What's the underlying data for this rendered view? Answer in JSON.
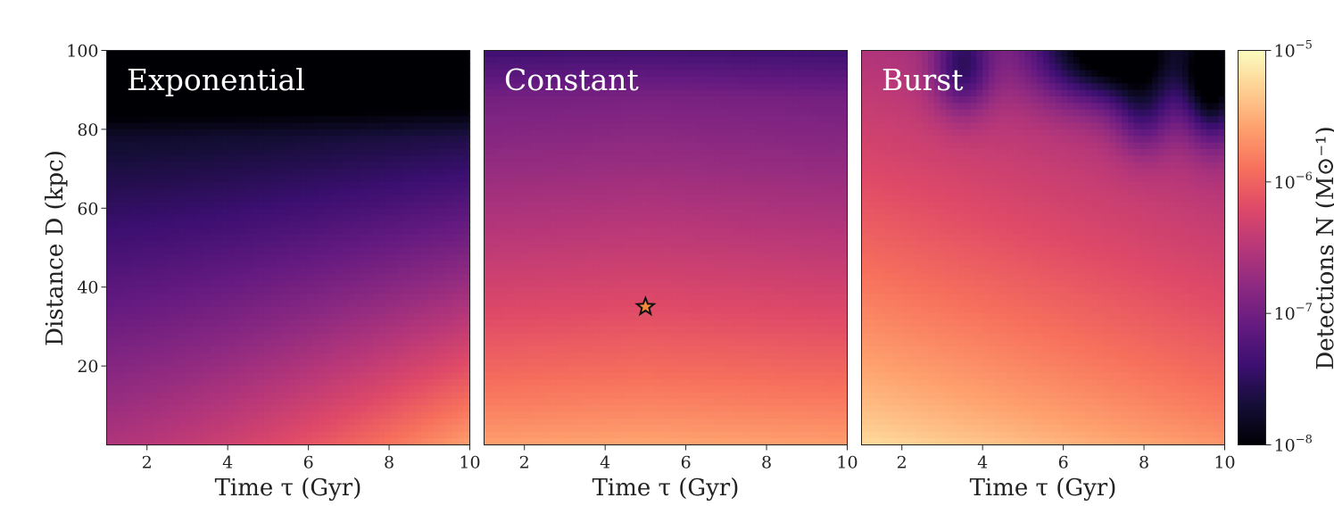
{
  "chart_data": {
    "type": "heatmap",
    "panels": [
      {
        "title": "Exponential",
        "xlabel": "Time τ (Gyr)",
        "ylabel": "Distance D (kpc)",
        "xlim": [
          1,
          10
        ],
        "ylim": [
          0,
          100
        ],
        "xticks": [
          2,
          4,
          6,
          8,
          10
        ],
        "yticks": [
          20,
          40,
          60,
          80,
          100
        ],
        "z_log10_grid": {
          "x": [
            1,
            10
          ],
          "y": [
            0,
            100
          ],
          "note_values": [
            [
              -6.6,
              -6.1
            ],
            [
              -7.8,
              -7.3
            ],
            [
              -8.0,
              -8.0
            ]
          ]
        }
      },
      {
        "title": "Constant",
        "xlabel": "Time τ (Gyr)",
        "xlim": [
          1,
          10
        ],
        "ylim": [
          0,
          100
        ],
        "xticks": [
          2,
          4,
          6,
          8,
          10
        ],
        "marker": {
          "symbol": "star",
          "x": 5,
          "y": 35
        }
      },
      {
        "title": "Burst",
        "xlabel": "Time τ (Gyr)",
        "xlim": [
          1,
          10
        ],
        "ylim": [
          0,
          100
        ],
        "xticks": [
          2,
          4,
          6,
          8,
          10
        ]
      }
    ],
    "colorbar": {
      "label": "Detections N (M⊙⁻¹)",
      "scale": "log",
      "range": [
        1e-08,
        1e-05
      ],
      "ticks": [
        {
          "mantissa": "10",
          "exponent": "−8",
          "value": -8
        },
        {
          "mantissa": "10",
          "exponent": "−7",
          "value": -7
        },
        {
          "mantissa": "10",
          "exponent": "−6",
          "value": -6
        },
        {
          "mantissa": "10",
          "exponent": "−5",
          "value": -5
        }
      ],
      "colormap": "magma"
    }
  }
}
